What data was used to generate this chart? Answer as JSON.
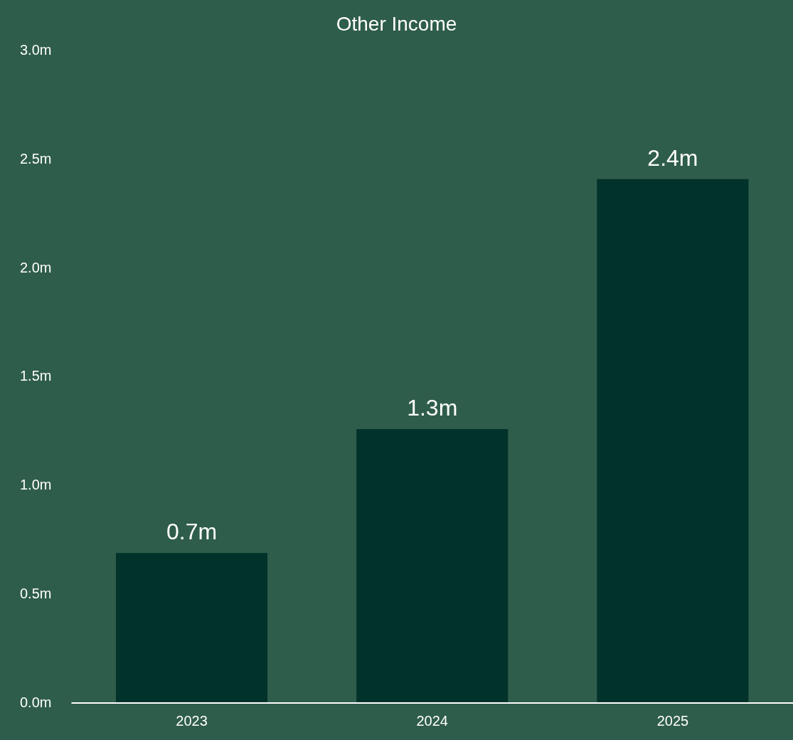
{
  "chart_data": {
    "type": "bar",
    "title": "Other Income",
    "categories": [
      "2023",
      "2024",
      "2025"
    ],
    "values": [
      0.69,
      1.26,
      2.41
    ],
    "value_labels": [
      "0.7m",
      "1.3m",
      "2.4m"
    ],
    "color": "#01332a",
    "ylim": [
      0,
      3
    ],
    "yticks": [
      {
        "value": 0,
        "label": "0.0m"
      },
      {
        "value": 0.5,
        "label": "0.5m"
      },
      {
        "value": 1,
        "label": "1.0m"
      },
      {
        "value": 1.5,
        "label": "1.5m"
      },
      {
        "value": 2,
        "label": "2.0m"
      },
      {
        "value": 2.5,
        "label": "2.5m"
      },
      {
        "value": 3,
        "label": "3.0m"
      }
    ],
    "grid": false,
    "legend": false
  }
}
